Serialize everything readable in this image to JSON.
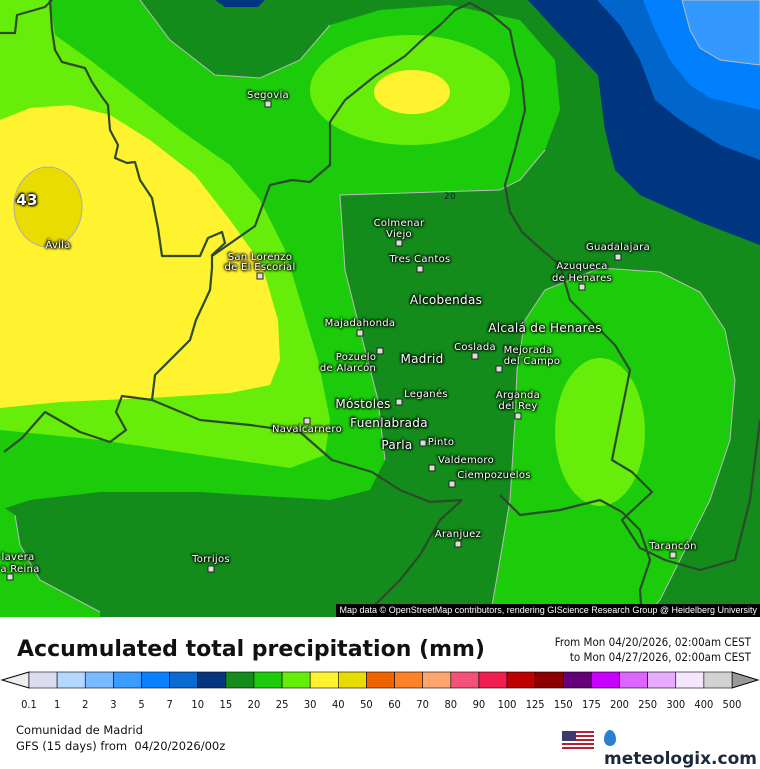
{
  "map": {
    "max_value_label": "43",
    "contour_label": "20",
    "attribution": "Map data © OpenStreetMap contributors, rendering GIScience Research Group @ Heidelberg University",
    "cities": [
      {
        "name": "Segovia"
      },
      {
        "name": "Ávila"
      },
      {
        "name": "San Lorenzo"
      },
      {
        "name": "de El Escorial"
      },
      {
        "name": "Colmenar"
      },
      {
        "name": "Viejo"
      },
      {
        "name": "Tres Cantos"
      },
      {
        "name": "Alcobendas"
      },
      {
        "name": "Majadahonda"
      },
      {
        "name": "Pozuelo"
      },
      {
        "name": "de Alarcón"
      },
      {
        "name": "Madrid"
      },
      {
        "name": "Coslada"
      },
      {
        "name": "Mejorada"
      },
      {
        "name": "del Campo"
      },
      {
        "name": "Alcalá de Henares"
      },
      {
        "name": "Guadalajara"
      },
      {
        "name": "Azuqueca"
      },
      {
        "name": "de Henares"
      },
      {
        "name": "Leganés"
      },
      {
        "name": "Móstoles"
      },
      {
        "name": "Fuenlabrada"
      },
      {
        "name": "Arganda"
      },
      {
        "name": "del Rey"
      },
      {
        "name": "Navalcarnero"
      },
      {
        "name": "Parla"
      },
      {
        "name": "Pinto"
      },
      {
        "name": "Valdemoro"
      },
      {
        "name": "Ciempozuelos"
      },
      {
        "name": "Aranjuez"
      },
      {
        "name": "Torrijos"
      },
      {
        "name": "lavera"
      },
      {
        "name": "a Reina"
      },
      {
        "name": "Tarancón"
      }
    ],
    "colors": {
      "c10_15": "#003680",
      "c7_10": "#0066cc",
      "c5_7": "#0080ff",
      "c3_5": "#3399ff",
      "c15_20": "#138c1c",
      "c20_25": "#1ccc0b",
      "c25_30": "#66ee0a",
      "c30_40": "#fff22e",
      "c40_50": "#e8dc00"
    }
  },
  "legend": {
    "title": "Accumulated total precipitation (mm)",
    "from": "From Mon 04/20/2026, 02:00am CEST",
    "to": "to Mon 04/27/2026, 02:00am CEST",
    "labels": [
      "0.1",
      "1",
      "2",
      "3",
      "5",
      "7",
      "10",
      "15",
      "20",
      "25",
      "30",
      "40",
      "50",
      "60",
      "70",
      "80",
      "90",
      "100",
      "125",
      "150",
      "175",
      "200",
      "250",
      "300",
      "400",
      "500"
    ],
    "colors": [
      "#dcdcf0",
      "#b4d7ff",
      "#78b9ff",
      "#3c9bff",
      "#0a82ff",
      "#0a6ad2",
      "#05367d",
      "#148c1e",
      "#1ccc0b",
      "#64ee0a",
      "#fff22e",
      "#e8dc00",
      "#f06400",
      "#ff8228",
      "#ffa56e",
      "#f55078",
      "#f01e50",
      "#be0000",
      "#8c0000",
      "#640078",
      "#c800ff",
      "#dc64ff",
      "#e6aaff",
      "#f5e6ff",
      "#d2d2d2"
    ],
    "under_color": "#eeeeee",
    "over_color": "#999999"
  },
  "footer": {
    "region": "Comunidad de Madrid",
    "model": "GFS (15 days) from  04/20/2026/00z",
    "brand": "meteologix.com"
  }
}
